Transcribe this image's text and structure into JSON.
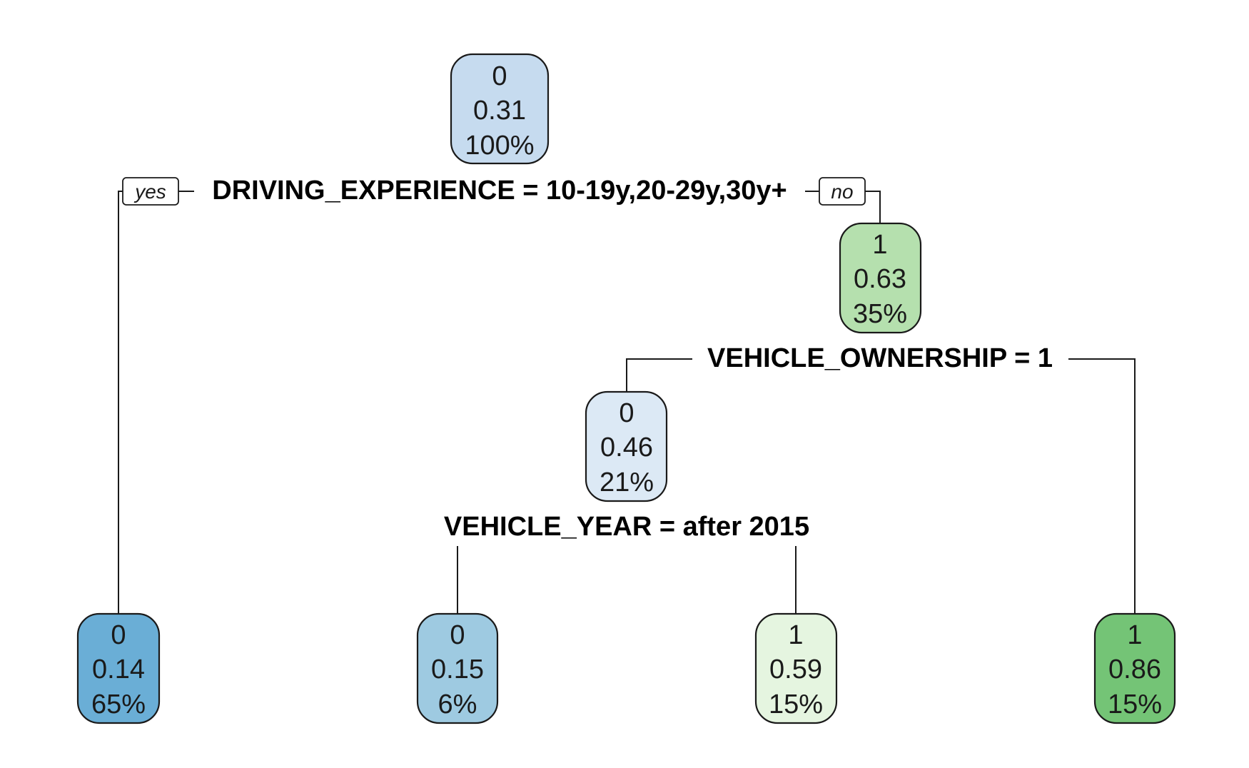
{
  "tree": {
    "nodes": [
      {
        "id": "root",
        "class_label": "0",
        "prob": "0.31",
        "pct": "100%",
        "color": "#c6dbef"
      },
      {
        "id": "right1",
        "class_label": "1",
        "prob": "0.63",
        "pct": "35%",
        "color": "#b5e0ae"
      },
      {
        "id": "mid",
        "class_label": "0",
        "prob": "0.46",
        "pct": "21%",
        "color": "#dce9f5"
      },
      {
        "id": "leaf1",
        "class_label": "0",
        "prob": "0.14",
        "pct": "65%",
        "color": "#6aaed6"
      },
      {
        "id": "leaf2",
        "class_label": "0",
        "prob": "0.15",
        "pct": "6%",
        "color": "#9ecae1"
      },
      {
        "id": "leaf3",
        "class_label": "1",
        "prob": "0.59",
        "pct": "15%",
        "color": "#e5f5e0"
      },
      {
        "id": "leaf4",
        "class_label": "1",
        "prob": "0.86",
        "pct": "15%",
        "color": "#74c476"
      }
    ],
    "splits": [
      {
        "id": "split-driving-experience",
        "text": "DRIVING_EXPERIENCE = 10-19y,20-29y,30y+"
      },
      {
        "id": "split-vehicle-ownership",
        "text": "VEHICLE_OWNERSHIP = 1"
      },
      {
        "id": "split-vehicle-year",
        "text": "VEHICLE_YEAR = after 2015"
      }
    ],
    "yes_label": "yes",
    "no_label": "no"
  }
}
